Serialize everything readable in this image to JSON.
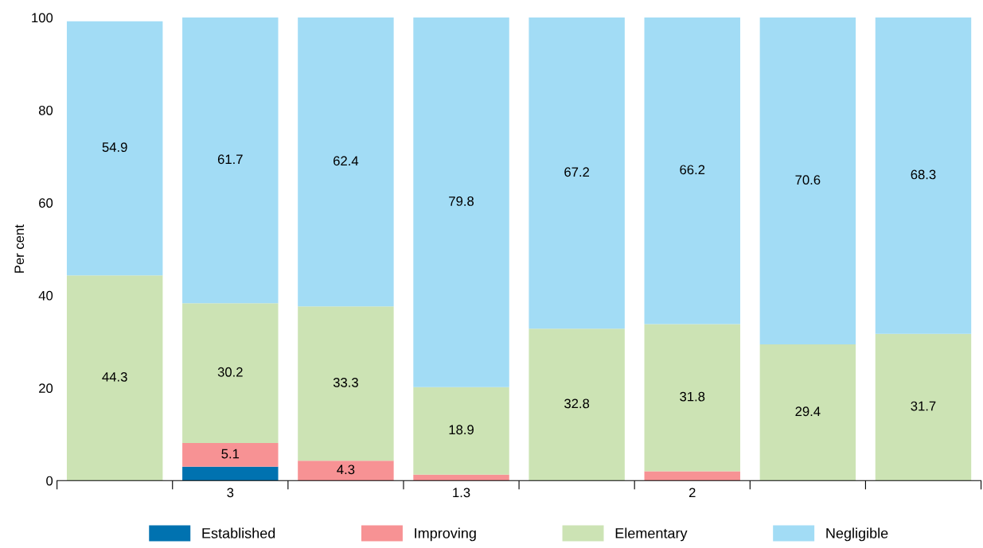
{
  "chart_data": {
    "type": "bar",
    "stacked": true,
    "ylabel": "Per cent",
    "categories": [
      null,
      null,
      null,
      null,
      null,
      null,
      null,
      null
    ],
    "series": [
      {
        "name": "Established",
        "color": "#0072b0",
        "values": [
          null,
          3,
          null,
          null,
          null,
          null,
          null,
          null
        ],
        "value_labels": [
          null,
          "3",
          null,
          null,
          null,
          null,
          null,
          null
        ]
      },
      {
        "name": "Improving",
        "color": "#f79294",
        "values": [
          null,
          5.1,
          4.3,
          1.3,
          null,
          2,
          null,
          null
        ],
        "value_labels": [
          null,
          "5.1",
          "4.3",
          "1.3",
          null,
          "2",
          null,
          null
        ]
      },
      {
        "name": "Elementary",
        "color": "#cce3b4",
        "values": [
          44.3,
          30.2,
          33.3,
          18.9,
          32.8,
          31.8,
          29.4,
          31.7
        ],
        "value_labels": [
          "44.3",
          "30.2",
          "33.3",
          "18.9",
          "32.8",
          "31.8",
          "29.4",
          "31.7"
        ]
      },
      {
        "name": "Negligible",
        "color": "#a2dcf5",
        "values": [
          54.9,
          61.7,
          62.4,
          79.8,
          67.2,
          66.2,
          70.6,
          68.3
        ],
        "value_labels": [
          "54.9",
          "61.7",
          "62.4",
          "79.8",
          "67.2",
          "66.2",
          "70.6",
          "68.3"
        ]
      }
    ],
    "ylim": [
      0,
      100
    ],
    "yticks": [
      0,
      20,
      40,
      60,
      80,
      100
    ],
    "grid": false,
    "legend": "bottom"
  }
}
